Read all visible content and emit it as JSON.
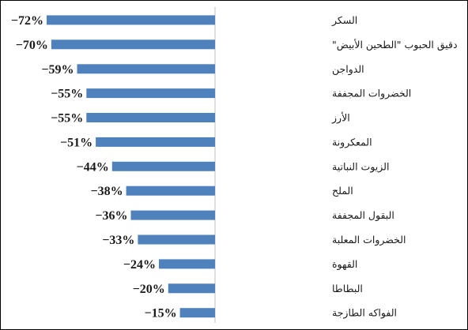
{
  "chart_data": {
    "type": "bar",
    "orientation": "horizontal",
    "categories": [
      "السكر",
      "دقيق الحبوب \"الطحين الأبيض\"",
      "الدواجن",
      "الخضروات المجففة",
      "الأرز",
      "المعكرونة",
      "الزيوت النباتية",
      "الملح",
      "البقول المجففة",
      "الخضروات المعلبة",
      "القهوة",
      "البطاطا",
      "الفواكه الطازجة"
    ],
    "values": [
      -72,
      -70,
      -59,
      -55,
      -55,
      -51,
      -44,
      -38,
      -36,
      -33,
      -24,
      -20,
      -15
    ],
    "value_labels": [
      "−72%",
      "−70%",
      "−59%",
      "−55%",
      "−55%",
      "−51%",
      "−44%",
      "−38%",
      "−36%",
      "−33%",
      "−24%",
      "−20%",
      "−15%"
    ],
    "unit": "%",
    "xlim": [
      -72,
      0
    ],
    "grid": false,
    "legend": "none",
    "bar_color": "#4f81bd",
    "axis_color": "#bfbfbf"
  }
}
